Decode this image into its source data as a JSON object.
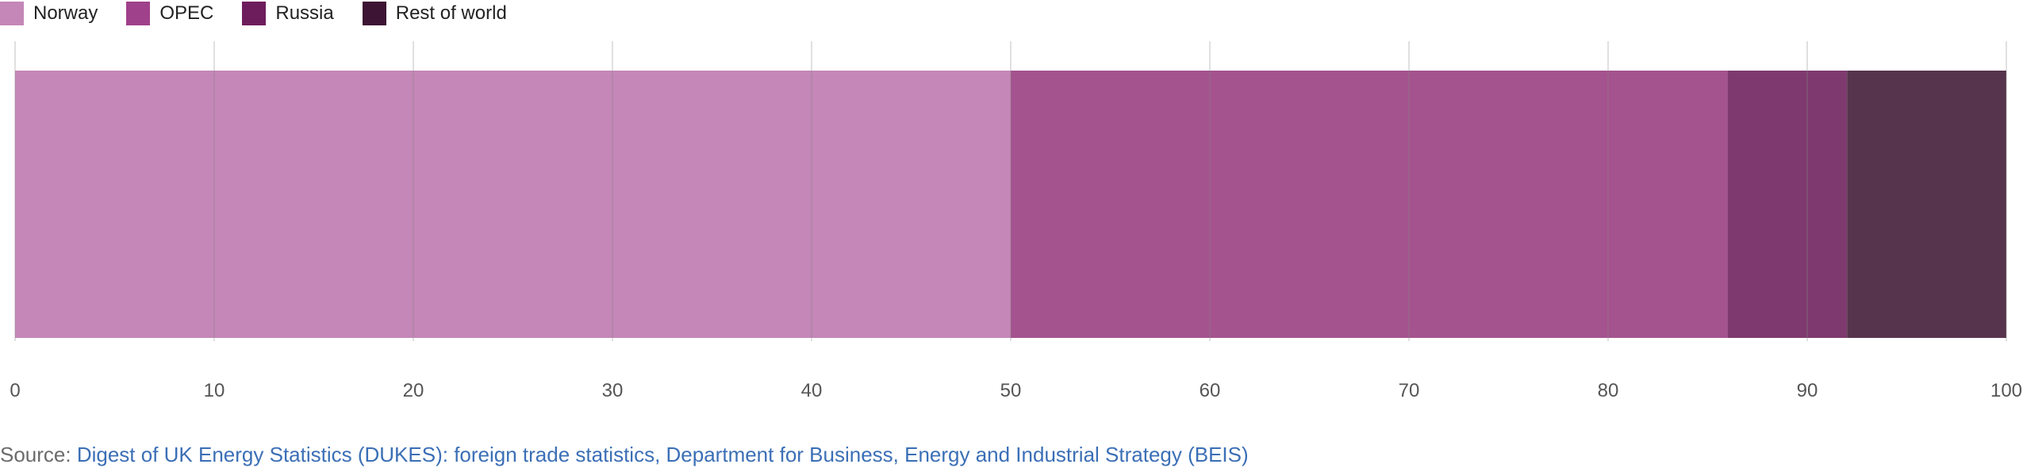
{
  "chart_data": {
    "type": "bar",
    "orientation": "horizontal",
    "stacked": true,
    "categories": [
      ""
    ],
    "series": [
      {
        "name": "Norway",
        "values": [
          50.0
        ],
        "color": "#c487b7"
      },
      {
        "name": "OPEC",
        "values": [
          36.0
        ],
        "color": "#a4538f"
      },
      {
        "name": "Russia",
        "values": [
          6.0
        ],
        "color": "#7e3a6e"
      },
      {
        "name": "Rest of world",
        "values": [
          8.0
        ],
        "color": "#57344d"
      }
    ],
    "legend_colors": [
      "#c487b7",
      "#a0418b",
      "#6e1d5c",
      "#3d1433"
    ],
    "xlim": [
      0,
      100
    ],
    "x_ticks": [
      0,
      10,
      20,
      30,
      40,
      50,
      60,
      70,
      80,
      90,
      100
    ],
    "grid": true,
    "legend_position": "top-left"
  },
  "source": {
    "prefix": "Source: ",
    "link_text": "Digest of UK Energy Statistics (DUKES): foreign trade statistics, Department for Business, Energy and Industrial Strategy (BEIS)"
  }
}
